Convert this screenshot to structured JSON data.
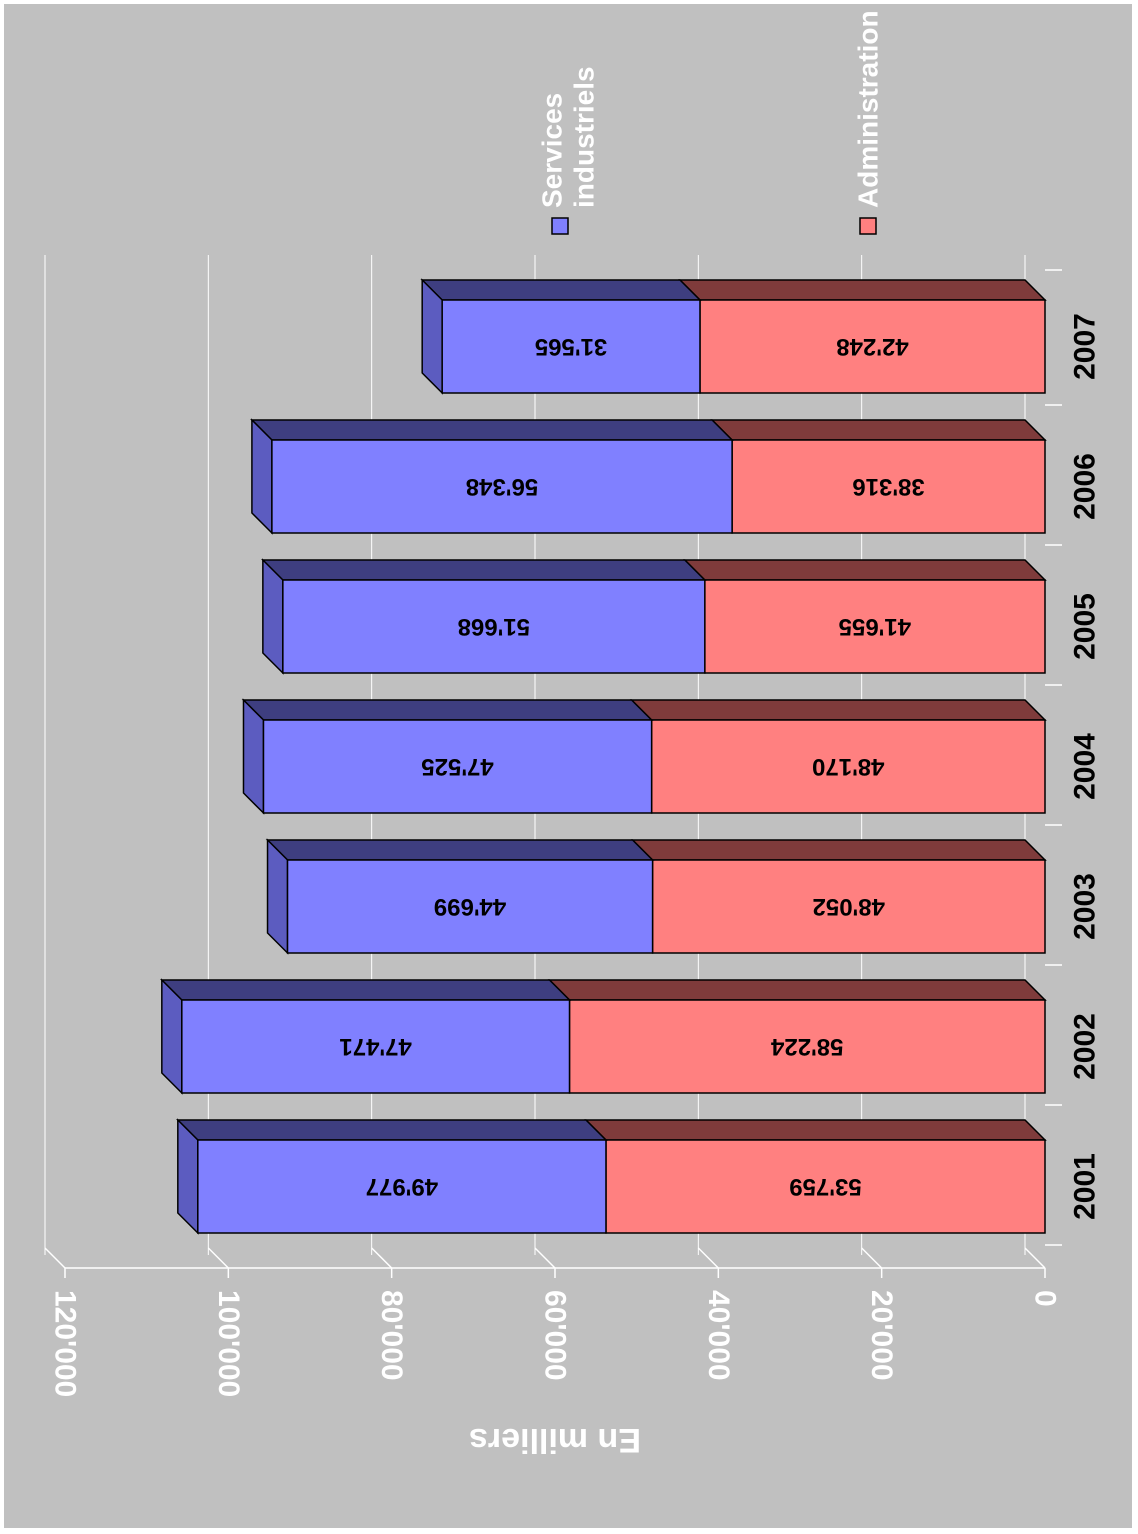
{
  "chart_data": {
    "type": "bar",
    "orientation": "horizontal, stacked, 3D",
    "categories": [
      "2001",
      "2002",
      "2003",
      "2004",
      "2005",
      "2006",
      "2007"
    ],
    "series": [
      {
        "name": "Administration",
        "values": [
          53759,
          58224,
          48052,
          48170,
          41655,
          38316,
          42248
        ],
        "labels": [
          "53'759",
          "58'224",
          "48'052",
          "48'170",
          "41'655",
          "38'316",
          "42'248"
        ]
      },
      {
        "name": "Services industriels",
        "values": [
          49977,
          47471,
          44699,
          47525,
          51668,
          56348,
          31565
        ],
        "labels": [
          "49'977",
          "47'471",
          "44'699",
          "47'525",
          "51'668",
          "56'348",
          "31'565"
        ]
      }
    ],
    "title": "",
    "xlabel": "",
    "ylabel": "En milliers",
    "ylim": [
      0,
      120000
    ],
    "ticks": [
      0,
      20000,
      40000,
      60000,
      80000,
      100000,
      120000
    ],
    "tick_labels": [
      "0",
      "20'000",
      "40'000",
      "60'000",
      "80'000",
      "100'000",
      "120'000"
    ],
    "grid": true,
    "legend": {
      "position": "right",
      "entries": [
        {
          "name": "Services industriels",
          "lines": [
            "Services",
            "industriels"
          ]
        },
        {
          "name": "Administration",
          "lines": [
            "Administration"
          ]
        }
      ]
    },
    "colors": {
      "background": "#c0c0c0",
      "administration": "#ff8080",
      "administration_top": "#7f3b3b",
      "services": "#8080ff",
      "services_top": "#3e3e80",
      "services_side": "#5c5cc0"
    }
  }
}
